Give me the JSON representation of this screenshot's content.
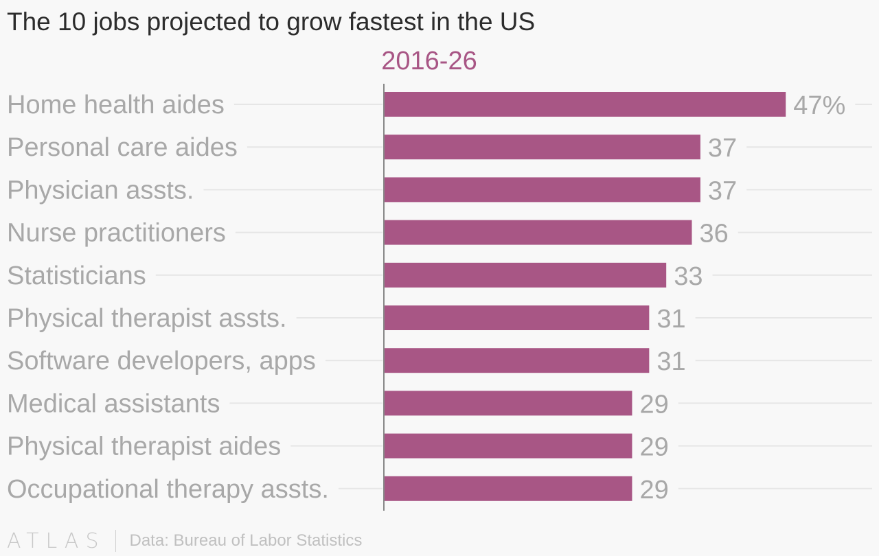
{
  "title": "The 10 jobs projected to grow fastest in the US",
  "footer": {
    "logo": "ATLAS",
    "source": "Data: Bureau of Labor Statistics"
  },
  "colors": {
    "bar": "#a85685",
    "series_label": "#a85685",
    "gridline": "#e6e6e6",
    "axis": "#888888"
  },
  "chart_data": {
    "type": "bar",
    "orientation": "horizontal",
    "title": "The 10 jobs projected to grow fastest in the US",
    "series_name": "2016-26",
    "unit_suffix": "%",
    "categories": [
      "Home health aides",
      "Personal care aides",
      "Physician assts.",
      "Nurse practitioners",
      "Statisticians",
      "Physical therapist assts.",
      "Software developers, apps",
      "Medical assistants",
      "Physical therapist aides",
      "Occupational therapy assts."
    ],
    "values": [
      47,
      37,
      37,
      36,
      33,
      31,
      31,
      29,
      29,
      29
    ],
    "value_labels": [
      "47%",
      "37",
      "37",
      "36",
      "33",
      "31",
      "31",
      "29",
      "29",
      "29"
    ],
    "xlim": [
      0,
      55
    ],
    "xlabel": "",
    "ylabel": ""
  }
}
